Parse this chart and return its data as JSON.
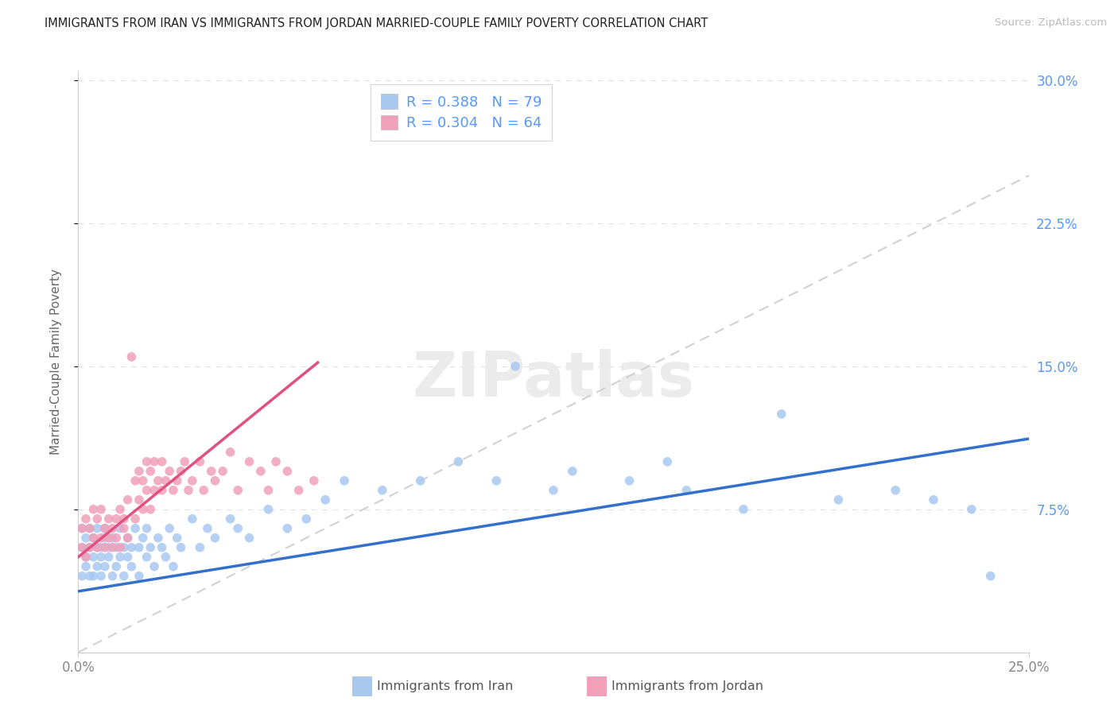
{
  "title": "IMMIGRANTS FROM IRAN VS IMMIGRANTS FROM JORDAN MARRIED-COUPLE FAMILY POVERTY CORRELATION CHART",
  "source": "Source: ZipAtlas.com",
  "ylabel": "Married-Couple Family Poverty",
  "legend_iran": "Immigrants from Iran",
  "legend_jordan": "Immigrants from Jordan",
  "R_iran": 0.388,
  "N_iran": 79,
  "R_jordan": 0.304,
  "N_jordan": 64,
  "color_iran": "#a8c8f0",
  "color_iran_line": "#3370cc",
  "color_jordan": "#f0a0b8",
  "color_jordan_line": "#e05080",
  "color_diag": "#cccccc",
  "color_grid": "#e0e0e8",
  "color_right_tick": "#5599ff",
  "xlim": [
    0.0,
    0.25
  ],
  "ylim": [
    0.0,
    0.305
  ],
  "iran_line_x0": 0.0,
  "iran_line_y0": 0.032,
  "iran_line_x1": 0.25,
  "iran_line_y1": 0.112,
  "jordan_line_x0": 0.0,
  "jordan_line_y0": 0.05,
  "jordan_line_x1": 0.063,
  "jordan_line_y1": 0.152,
  "iran_scatter_x": [
    0.001,
    0.001,
    0.001,
    0.002,
    0.002,
    0.002,
    0.003,
    0.003,
    0.003,
    0.004,
    0.004,
    0.004,
    0.005,
    0.005,
    0.005,
    0.006,
    0.006,
    0.006,
    0.007,
    0.007,
    0.007,
    0.008,
    0.008,
    0.009,
    0.009,
    0.01,
    0.01,
    0.011,
    0.011,
    0.012,
    0.012,
    0.013,
    0.013,
    0.014,
    0.014,
    0.015,
    0.016,
    0.016,
    0.017,
    0.018,
    0.018,
    0.019,
    0.02,
    0.021,
    0.022,
    0.023,
    0.024,
    0.025,
    0.026,
    0.027,
    0.03,
    0.032,
    0.034,
    0.036,
    0.04,
    0.042,
    0.045,
    0.05,
    0.055,
    0.06,
    0.065,
    0.07,
    0.08,
    0.09,
    0.1,
    0.11,
    0.115,
    0.125,
    0.13,
    0.145,
    0.155,
    0.16,
    0.175,
    0.185,
    0.2,
    0.215,
    0.225,
    0.235,
    0.24
  ],
  "iran_scatter_y": [
    0.04,
    0.055,
    0.065,
    0.045,
    0.06,
    0.05,
    0.04,
    0.055,
    0.065,
    0.05,
    0.04,
    0.06,
    0.055,
    0.045,
    0.065,
    0.04,
    0.055,
    0.05,
    0.045,
    0.06,
    0.065,
    0.05,
    0.055,
    0.04,
    0.06,
    0.055,
    0.045,
    0.05,
    0.065,
    0.055,
    0.04,
    0.06,
    0.05,
    0.055,
    0.045,
    0.065,
    0.055,
    0.04,
    0.06,
    0.065,
    0.05,
    0.055,
    0.045,
    0.06,
    0.055,
    0.05,
    0.065,
    0.045,
    0.06,
    0.055,
    0.07,
    0.055,
    0.065,
    0.06,
    0.07,
    0.065,
    0.06,
    0.075,
    0.065,
    0.07,
    0.08,
    0.09,
    0.085,
    0.09,
    0.1,
    0.09,
    0.15,
    0.085,
    0.095,
    0.09,
    0.1,
    0.085,
    0.075,
    0.125,
    0.08,
    0.085,
    0.08,
    0.075,
    0.04
  ],
  "jordan_scatter_x": [
    0.001,
    0.001,
    0.002,
    0.002,
    0.003,
    0.003,
    0.004,
    0.004,
    0.005,
    0.005,
    0.006,
    0.006,
    0.007,
    0.007,
    0.008,
    0.008,
    0.009,
    0.009,
    0.01,
    0.01,
    0.011,
    0.011,
    0.012,
    0.012,
    0.013,
    0.013,
    0.014,
    0.015,
    0.015,
    0.016,
    0.016,
    0.017,
    0.017,
    0.018,
    0.018,
    0.019,
    0.019,
    0.02,
    0.02,
    0.021,
    0.022,
    0.022,
    0.023,
    0.024,
    0.025,
    0.026,
    0.027,
    0.028,
    0.029,
    0.03,
    0.032,
    0.033,
    0.035,
    0.036,
    0.038,
    0.04,
    0.042,
    0.045,
    0.048,
    0.05,
    0.052,
    0.055,
    0.058,
    0.062
  ],
  "jordan_scatter_y": [
    0.055,
    0.065,
    0.05,
    0.07,
    0.055,
    0.065,
    0.06,
    0.075,
    0.055,
    0.07,
    0.06,
    0.075,
    0.065,
    0.055,
    0.07,
    0.06,
    0.055,
    0.065,
    0.07,
    0.06,
    0.075,
    0.055,
    0.07,
    0.065,
    0.06,
    0.08,
    0.155,
    0.07,
    0.09,
    0.08,
    0.095,
    0.075,
    0.09,
    0.085,
    0.1,
    0.095,
    0.075,
    0.085,
    0.1,
    0.09,
    0.085,
    0.1,
    0.09,
    0.095,
    0.085,
    0.09,
    0.095,
    0.1,
    0.085,
    0.09,
    0.1,
    0.085,
    0.095,
    0.09,
    0.095,
    0.105,
    0.085,
    0.1,
    0.095,
    0.085,
    0.1,
    0.095,
    0.085,
    0.09
  ]
}
